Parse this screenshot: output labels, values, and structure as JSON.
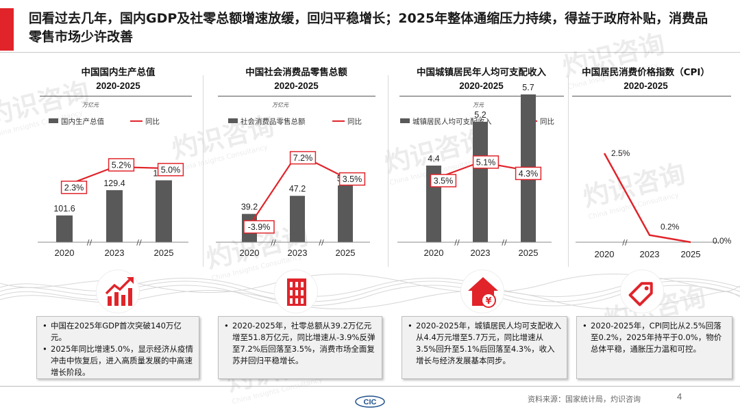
{
  "header": {
    "title": "回看过去几年，国内GDP及社零总额增速放缓，回归平稳增长；2025年整体通缩压力持续，得益于政府补贴，消费品零售市场少许改善"
  },
  "colors": {
    "accent": "#e0242a",
    "bar": "#595959",
    "line": "#e0242a"
  },
  "watermark": {
    "cn": "灼识咨询",
    "en": "China Insights Consultancy",
    "brand": "CIC"
  },
  "panels": [
    {
      "title": "中国国内生产总值",
      "years": "2020-2025"
    },
    {
      "title": "中国社会消费品零售总额",
      "years": "2020-2025"
    },
    {
      "title": "中国城镇居民年人均可支配收入",
      "years": "2020-2025"
    },
    {
      "title": "中国居民消费价格指数（CPI）",
      "years": "2020-2025"
    }
  ],
  "chart_data": [
    {
      "type": "bar",
      "unit": "万亿元",
      "categories": [
        "2020",
        "2023",
        "2025"
      ],
      "series": [
        {
          "name": "国内生产总值",
          "type": "bar",
          "values": [
            101.6,
            129.4,
            140.2
          ],
          "labels": [
            "101.6",
            "129.4",
            "140.2"
          ]
        },
        {
          "name": "同比",
          "type": "line",
          "values": [
            2.3,
            5.2,
            5.0
          ],
          "labels": [
            "2.3%",
            "5.2%",
            "5.0%"
          ]
        }
      ]
    },
    {
      "type": "bar",
      "unit": "万亿元",
      "categories": [
        "2020",
        "2023",
        "2025"
      ],
      "series": [
        {
          "name": "社会消费品零售总额",
          "type": "bar",
          "values": [
            39.2,
            47.2,
            51.8
          ],
          "labels": [
            "39.2",
            "47.2",
            "51.8"
          ]
        },
        {
          "name": "同比",
          "type": "line",
          "values": [
            -3.9,
            7.2,
            3.5
          ],
          "labels": [
            "-3.9%",
            "7.2%",
            "3.5%"
          ]
        }
      ]
    },
    {
      "type": "bar",
      "unit": "万元",
      "categories": [
        "2020",
        "2023",
        "2025"
      ],
      "series": [
        {
          "name": "城镇居民人均可支配收入",
          "type": "bar",
          "values": [
            4.4,
            5.2,
            5.7
          ],
          "labels": [
            "4.4",
            "5.2",
            "5.7"
          ]
        },
        {
          "name": "同比",
          "type": "line",
          "values": [
            3.5,
            5.1,
            4.3
          ],
          "labels": [
            "3.5%",
            "5.1%",
            "4.3%"
          ]
        }
      ]
    },
    {
      "type": "line",
      "categories": [
        "2020",
        "2023",
        "2025"
      ],
      "series": [
        {
          "type": "line",
          "values": [
            2.5,
            0.2,
            0.0
          ],
          "labels": [
            "2.5%",
            "0.2%",
            "0.0%"
          ]
        }
      ]
    }
  ],
  "icons": [
    "trend-up-chart-icon",
    "building-icon",
    "house-yuan-icon",
    "price-tag-icon"
  ],
  "notes": [
    [
      "中国在2025年GDP首次突破140万亿元。",
      "2025年同比增速5.0%，显示经济从疫情冲击中恢复后，进入高质量发展的中高速增长阶段。"
    ],
    [
      "2020-2025年，社零总额从39.2万亿元增至51.8万亿元，同比增速从-3.9%反弹至7.2%后回落至3.5%，消费市场全面复苏并回归平稳增长。"
    ],
    [
      "2020-2025年，城镇居民人均可支配收入从4.4万元增至5.7万元，同比增速从3.5%回升至5.1%后回落至4.3%，收入增长与经济发展基本同步。"
    ],
    [
      "2020-2025年，CPI同比从2.5%回落至0.2%，2025年持平于0.0%，物价总体平稳，通胀压力温和可控。"
    ]
  ],
  "footer": {
    "source": "资料来源：国家统计局，灼识咨询",
    "page": "4",
    "logo": "CIC"
  }
}
